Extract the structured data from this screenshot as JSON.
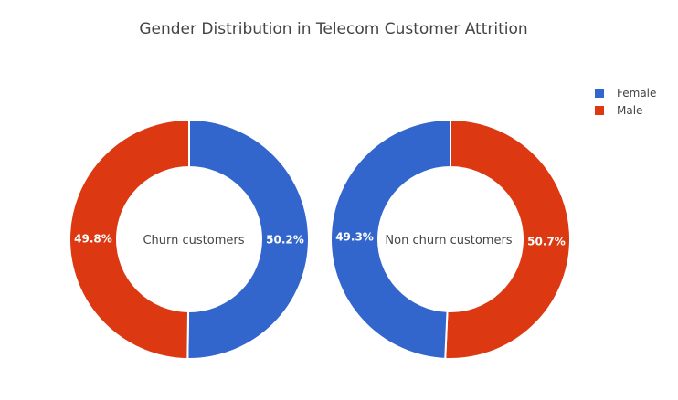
{
  "title": "Gender Distribution in Telecom Customer Attrition",
  "legend": [
    {
      "label": "Female",
      "color": "#3366cc"
    },
    {
      "label": "Male",
      "color": "#dc3912"
    }
  ],
  "chart_data": [
    {
      "type": "pie",
      "hole": true,
      "title": "Gender Distribution in Telecom Customer Attrition",
      "center_label": "Churn customers",
      "slices": [
        {
          "label": "Female",
          "value": 50.2,
          "text": "50.2%",
          "color": "#3366cc"
        },
        {
          "label": "Male",
          "value": 49.8,
          "text": "49.8%",
          "color": "#dc3912"
        }
      ],
      "legend_placement": "top-right"
    },
    {
      "type": "pie",
      "hole": true,
      "title": "Gender Distribution in Telecom Customer Attrition",
      "center_label": "Non churn customers",
      "slices": [
        {
          "label": "Male",
          "value": 50.7,
          "text": "50.7%",
          "color": "#dc3912"
        },
        {
          "label": "Female",
          "value": 49.3,
          "text": "49.3%",
          "color": "#3366cc"
        }
      ],
      "legend_placement": "top-right"
    }
  ]
}
